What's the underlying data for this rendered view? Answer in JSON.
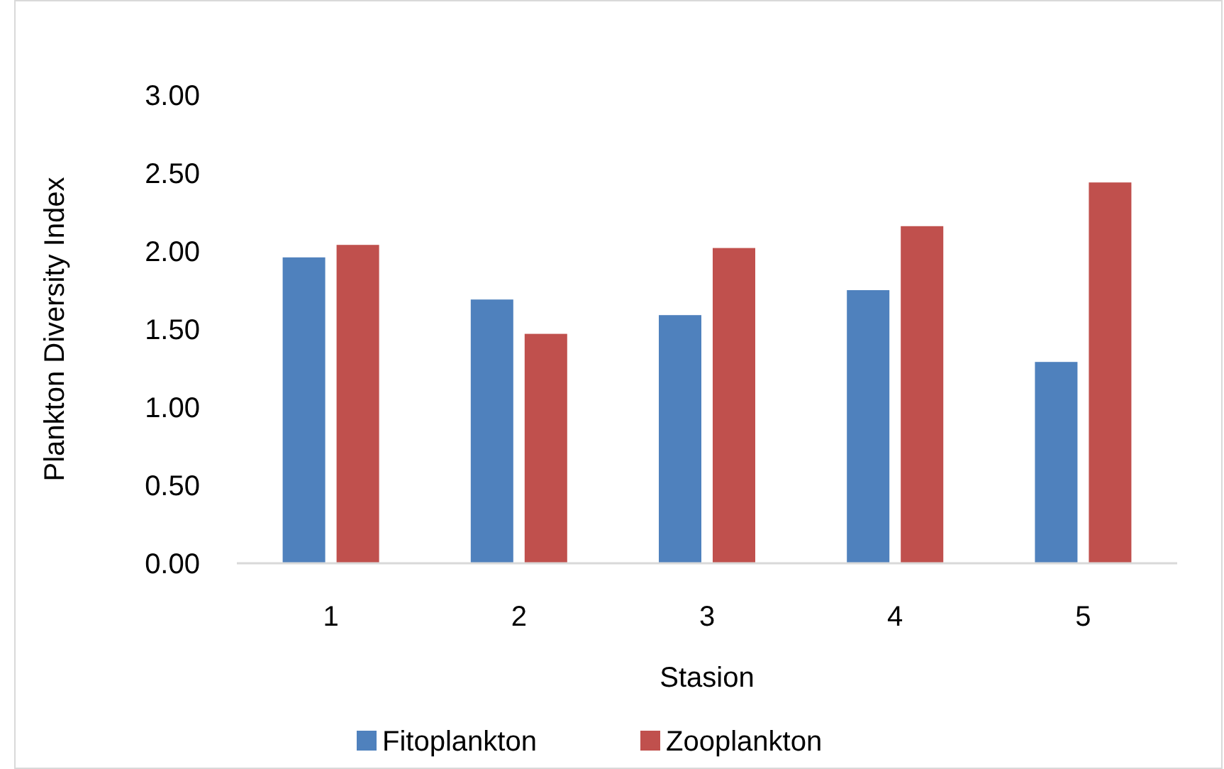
{
  "chart_data": {
    "type": "bar",
    "xlabel": "Stasion",
    "ylabel": "Plankton Diversity Index",
    "categories": [
      "1",
      "2",
      "3",
      "4",
      "5"
    ],
    "series": [
      {
        "name": "Fitoplankton",
        "color": "#4f81bd",
        "values": [
          1.96,
          1.69,
          1.59,
          1.75,
          1.29
        ]
      },
      {
        "name": "Zooplankton",
        "color": "#c0504d",
        "values": [
          2.04,
          1.47,
          2.02,
          2.16,
          2.44
        ]
      }
    ],
    "ylim": [
      0,
      3
    ],
    "yticks": [
      {
        "value": 0,
        "label": "0.00"
      },
      {
        "value": 0.5,
        "label": "0.50"
      },
      {
        "value": 1,
        "label": "1.00"
      },
      {
        "value": 1.5,
        "label": "1.50"
      },
      {
        "value": 2,
        "label": "2.00"
      },
      {
        "value": 2.5,
        "label": "2.50"
      },
      {
        "value": 3,
        "label": "3.00"
      }
    ],
    "grid": false,
    "legend": "bottom"
  }
}
